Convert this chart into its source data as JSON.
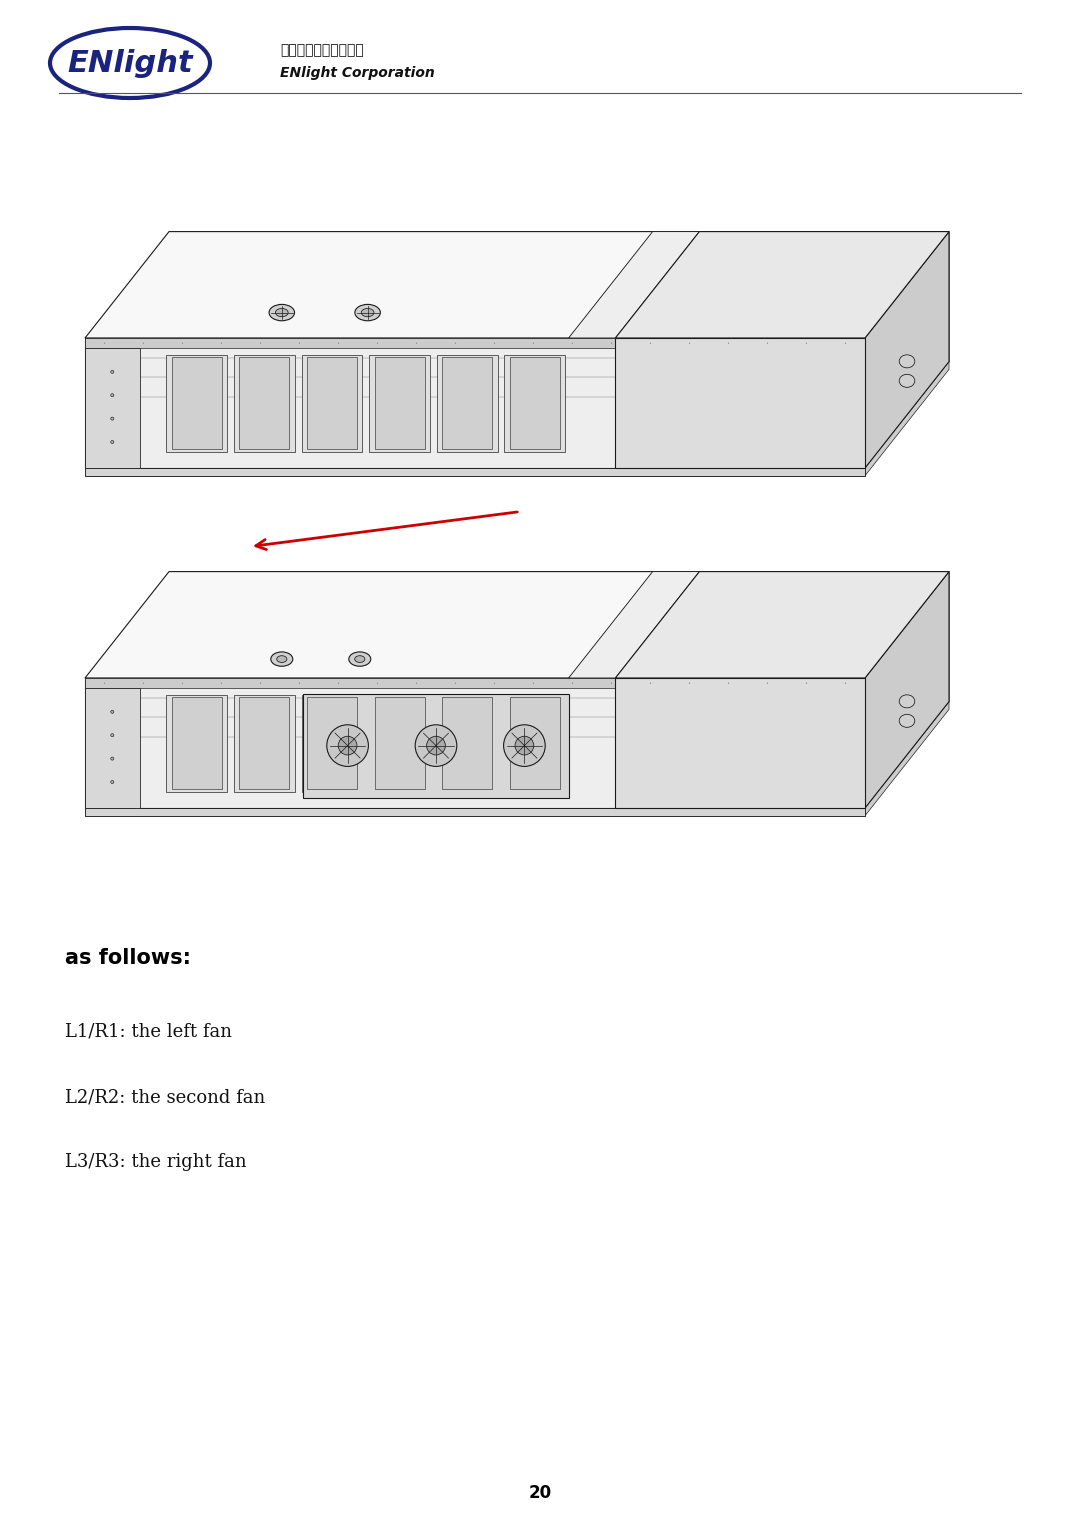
{
  "page_width": 10.8,
  "page_height": 15.28,
  "dpi": 100,
  "bg": "#ffffff",
  "logo_color": "#1a237e",
  "logo_text": "ENlight",
  "logo_chinese": "英診企業股份有限公司",
  "logo_corp": "ENlight Corporation",
  "sep_color": "#555555",
  "arrow_color": "#cc0000",
  "heading": "as follows:",
  "items": [
    "L1/R1: the left fan",
    "L2/R2: the second fan",
    "L3/R3: the right fan"
  ],
  "page_num": "20",
  "line_color": "#1a1a1a",
  "fill_top": "#f8f8f8",
  "fill_side": "#e8e8e8",
  "fill_front": "#eeeeee"
}
